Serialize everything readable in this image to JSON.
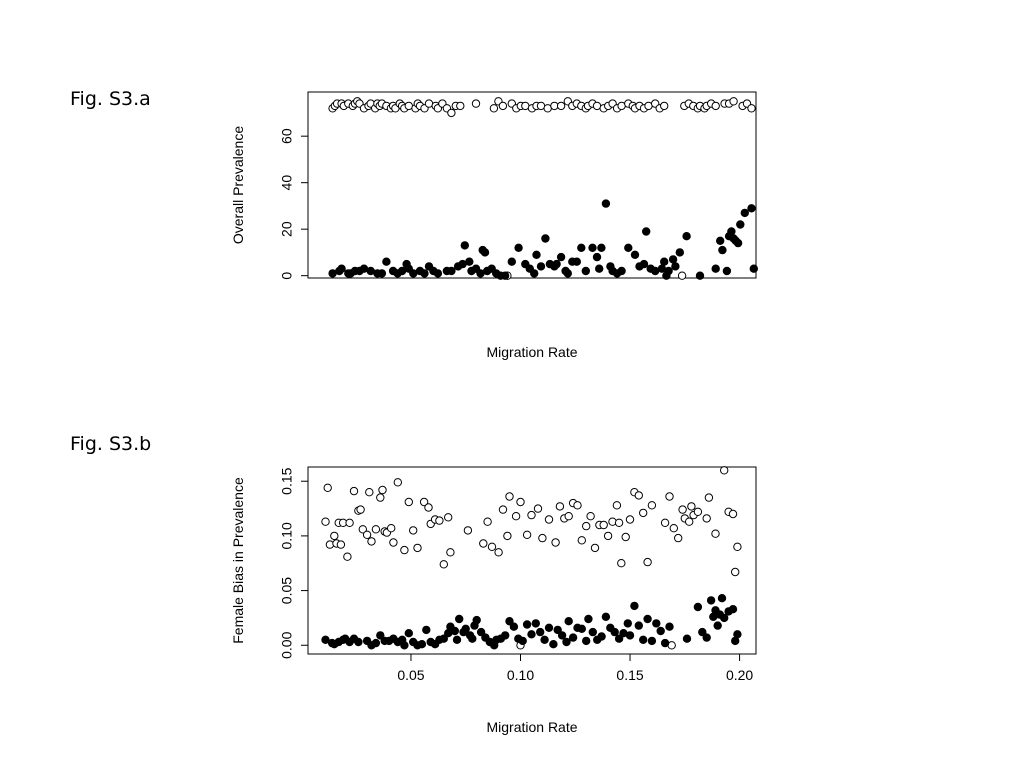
{
  "figure_labels": {
    "a": "Fig. S3.a",
    "b": "Fig. S3.b"
  },
  "chart_data": [
    {
      "type": "scatter",
      "title": "",
      "xlabel": "Migration Rate",
      "ylabel": "Overall Prevalence",
      "xlim": [
        0.0,
        0.2
      ],
      "ylim": [
        -1,
        79
      ],
      "xticks": [],
      "yticks": [
        0,
        20,
        40,
        60
      ],
      "ytick_labels": [
        "0",
        "20",
        "40",
        "60"
      ],
      "grid": false,
      "legend": "none",
      "series": [
        {
          "marker": "open-circle",
          "x": [
            0.011,
            0.012,
            0.013,
            0.015,
            0.016,
            0.018,
            0.02,
            0.021,
            0.022,
            0.023,
            0.025,
            0.027,
            0.028,
            0.03,
            0.031,
            0.032,
            0.033,
            0.035,
            0.037,
            0.038,
            0.039,
            0.041,
            0.042,
            0.043,
            0.045,
            0.048,
            0.049,
            0.05,
            0.052,
            0.054,
            0.057,
            0.058,
            0.06,
            0.062,
            0.064,
            0.066,
            0.068,
            0.075,
            0.083,
            0.085,
            0.087,
            0.091,
            0.093,
            0.095,
            0.097,
            0.1,
            0.102,
            0.104,
            0.107,
            0.11,
            0.113,
            0.116,
            0.118,
            0.12,
            0.122,
            0.124,
            0.125,
            0.127,
            0.129,
            0.132,
            0.134,
            0.136,
            0.138,
            0.14,
            0.143,
            0.145,
            0.146,
            0.148,
            0.15,
            0.152,
            0.155,
            0.157,
            0.159,
            0.168,
            0.17,
            0.172,
            0.174,
            0.175,
            0.177,
            0.178,
            0.18,
            0.182,
            0.186,
            0.188,
            0.19,
            0.194,
            0.196,
            0.198,
            0.089,
            0.167
          ],
          "y": [
            72,
            73,
            74,
            74,
            73,
            74,
            73,
            74,
            75,
            74,
            72,
            73,
            74,
            72,
            74,
            73,
            74,
            73,
            72,
            73,
            72,
            74,
            73,
            72,
            73,
            72,
            74,
            73,
            72,
            74,
            73,
            72,
            74,
            72,
            70,
            73,
            73,
            74,
            72,
            75,
            73,
            74,
            72,
            73,
            73,
            72,
            73,
            73,
            72,
            73,
            73,
            75,
            73,
            74,
            73,
            72,
            73,
            74,
            73,
            72,
            73,
            74,
            72,
            73,
            74,
            73,
            72,
            73,
            72,
            73,
            74,
            72,
            73,
            73,
            74,
            73,
            72,
            73,
            72,
            73,
            74,
            73,
            74,
            74,
            75,
            73,
            74,
            72,
            0,
            0
          ]
        },
        {
          "marker": "filled-circle",
          "x": [
            0.011,
            0.014,
            0.015,
            0.018,
            0.019,
            0.021,
            0.023,
            0.025,
            0.028,
            0.031,
            0.033,
            0.035,
            0.038,
            0.04,
            0.042,
            0.044,
            0.045,
            0.047,
            0.05,
            0.052,
            0.054,
            0.056,
            0.058,
            0.062,
            0.064,
            0.067,
            0.069,
            0.07,
            0.072,
            0.073,
            0.075,
            0.077,
            0.078,
            0.079,
            0.08,
            0.082,
            0.084,
            0.086,
            0.088,
            0.091,
            0.094,
            0.097,
            0.099,
            0.101,
            0.102,
            0.104,
            0.106,
            0.108,
            0.11,
            0.111,
            0.113,
            0.115,
            0.116,
            0.118,
            0.12,
            0.122,
            0.124,
            0.127,
            0.129,
            0.13,
            0.131,
            0.133,
            0.135,
            0.136,
            0.138,
            0.14,
            0.143,
            0.146,
            0.148,
            0.15,
            0.151,
            0.153,
            0.155,
            0.158,
            0.159,
            0.16,
            0.161,
            0.163,
            0.164,
            0.166,
            0.169,
            0.175,
            0.182,
            0.184,
            0.185,
            0.187,
            0.188,
            0.189,
            0.19,
            0.191,
            0.192,
            0.193,
            0.195,
            0.198,
            0.199
          ],
          "y": [
            1,
            2,
            3,
            1,
            1,
            2,
            2,
            3,
            2,
            1,
            1,
            6,
            2,
            1,
            2,
            5,
            3,
            1,
            2,
            1,
            4,
            2,
            1,
            2,
            2,
            4,
            5,
            13,
            6,
            2,
            3,
            1,
            11,
            10,
            2,
            3,
            1,
            0,
            0,
            6,
            12,
            5,
            3,
            1,
            9,
            4,
            16,
            5,
            4,
            5,
            8,
            2,
            1,
            6,
            6,
            12,
            2,
            12,
            8,
            3,
            12,
            31,
            4,
            2,
            1,
            2,
            12,
            9,
            4,
            5,
            19,
            3,
            2,
            3,
            6,
            0,
            2,
            7,
            4,
            10,
            17,
            0,
            3,
            15,
            11,
            2,
            17,
            19,
            16,
            15,
            14,
            22,
            27,
            29,
            3
          ],
          "_note": ""
        }
      ]
    },
    {
      "type": "scatter",
      "title": "",
      "xlabel": "Migration Rate",
      "ylabel": "Female Bias in Prevalence",
      "xlim": [
        0.003,
        0.2075
      ],
      "ylim": [
        -0.008,
        0.163
      ],
      "xticks": [
        0.05,
        0.1,
        0.15,
        0.2
      ],
      "xtick_labels": [
        "0.05",
        "0.10",
        "0.15",
        "0.20"
      ],
      "yticks": [
        0.0,
        0.05,
        0.1,
        0.15
      ],
      "ytick_labels": [
        "0.00",
        "0.05",
        "0.10",
        "0.15"
      ],
      "grid": false,
      "legend": "none",
      "series": [
        {
          "marker": "open-circle",
          "x": [
            0.011,
            0.012,
            0.013,
            0.015,
            0.016,
            0.017,
            0.018,
            0.019,
            0.021,
            0.022,
            0.024,
            0.026,
            0.027,
            0.028,
            0.03,
            0.031,
            0.032,
            0.034,
            0.036,
            0.037,
            0.038,
            0.039,
            0.041,
            0.042,
            0.044,
            0.047,
            0.049,
            0.051,
            0.053,
            0.056,
            0.058,
            0.059,
            0.061,
            0.063,
            0.065,
            0.067,
            0.068,
            0.076,
            0.083,
            0.085,
            0.087,
            0.09,
            0.092,
            0.094,
            0.095,
            0.098,
            0.1,
            0.103,
            0.105,
            0.108,
            0.11,
            0.113,
            0.116,
            0.118,
            0.12,
            0.122,
            0.124,
            0.126,
            0.128,
            0.13,
            0.132,
            0.134,
            0.136,
            0.138,
            0.14,
            0.142,
            0.144,
            0.145,
            0.146,
            0.148,
            0.15,
            0.152,
            0.154,
            0.156,
            0.158,
            0.16,
            0.166,
            0.168,
            0.17,
            0.172,
            0.174,
            0.175,
            0.177,
            0.178,
            0.179,
            0.181,
            0.185,
            0.186,
            0.189,
            0.193,
            0.195,
            0.197,
            0.198,
            0.199,
            0.1,
            0.169
          ],
          "y": [
            0.113,
            0.144,
            0.092,
            0.1,
            0.093,
            0.112,
            0.092,
            0.112,
            0.081,
            0.112,
            0.141,
            0.123,
            0.124,
            0.106,
            0.101,
            0.14,
            0.095,
            0.106,
            0.135,
            0.142,
            0.104,
            0.103,
            0.107,
            0.094,
            0.149,
            0.087,
            0.131,
            0.105,
            0.089,
            0.131,
            0.126,
            0.111,
            0.115,
            0.114,
            0.074,
            0.117,
            0.085,
            0.105,
            0.093,
            0.113,
            0.09,
            0.085,
            0.124,
            0.1,
            0.136,
            0.118,
            0.131,
            0.101,
            0.119,
            0.125,
            0.098,
            0.115,
            0.094,
            0.127,
            0.116,
            0.118,
            0.13,
            0.128,
            0.096,
            0.109,
            0.118,
            0.089,
            0.11,
            0.11,
            0.1,
            0.113,
            0.128,
            0.112,
            0.075,
            0.099,
            0.115,
            0.14,
            0.137,
            0.121,
            0.076,
            0.128,
            0.112,
            0.136,
            0.107,
            0.098,
            0.124,
            0.116,
            0.113,
            0.127,
            0.119,
            0.122,
            0.116,
            0.135,
            0.102,
            0.16,
            0.122,
            0.12,
            0.067,
            0.09,
            0.0,
            0.0
          ]
        },
        {
          "marker": "filled-circle",
          "x": [
            0.011,
            0.014,
            0.015,
            0.017,
            0.019,
            0.02,
            0.022,
            0.024,
            0.026,
            0.03,
            0.032,
            0.034,
            0.036,
            0.038,
            0.04,
            0.042,
            0.044,
            0.046,
            0.047,
            0.049,
            0.051,
            0.053,
            0.055,
            0.057,
            0.059,
            0.061,
            0.063,
            0.065,
            0.067,
            0.068,
            0.07,
            0.071,
            0.072,
            0.074,
            0.075,
            0.077,
            0.078,
            0.079,
            0.08,
            0.082,
            0.084,
            0.086,
            0.088,
            0.089,
            0.091,
            0.093,
            0.095,
            0.097,
            0.099,
            0.101,
            0.103,
            0.105,
            0.107,
            0.109,
            0.111,
            0.113,
            0.115,
            0.117,
            0.119,
            0.121,
            0.122,
            0.124,
            0.126,
            0.128,
            0.13,
            0.131,
            0.133,
            0.135,
            0.137,
            0.139,
            0.141,
            0.143,
            0.145,
            0.147,
            0.149,
            0.15,
            0.152,
            0.154,
            0.156,
            0.158,
            0.16,
            0.162,
            0.164,
            0.166,
            0.168,
            0.176,
            0.181,
            0.183,
            0.185,
            0.187,
            0.188,
            0.189,
            0.19,
            0.191,
            0.192,
            0.193,
            0.195,
            0.197,
            0.198,
            0.199
          ],
          "y": [
            0.005,
            0.002,
            0.001,
            0.003,
            0.005,
            0.006,
            0.003,
            0.006,
            0.003,
            0.004,
            0.0,
            0.002,
            0.009,
            0.004,
            0.004,
            0.006,
            0.003,
            0.005,
            0.0,
            0.011,
            0.003,
            0.0,
            0.001,
            0.014,
            0.003,
            0.001,
            0.005,
            0.006,
            0.011,
            0.017,
            0.013,
            0.005,
            0.024,
            0.012,
            0.015,
            0.009,
            0.006,
            0.018,
            0.023,
            0.012,
            0.007,
            0.003,
            0.0,
            0.005,
            0.006,
            0.009,
            0.022,
            0.017,
            0.006,
            0.004,
            0.019,
            0.01,
            0.02,
            0.012,
            0.005,
            0.016,
            0.001,
            0.014,
            0.009,
            0.003,
            0.022,
            0.007,
            0.016,
            0.015,
            0.004,
            0.024,
            0.012,
            0.005,
            0.008,
            0.026,
            0.016,
            0.012,
            0.006,
            0.011,
            0.02,
            0.009,
            0.036,
            0.018,
            0.005,
            0.024,
            0.004,
            0.02,
            0.013,
            0.002,
            0.017,
            0.006,
            0.035,
            0.012,
            0.007,
            0.041,
            0.026,
            0.032,
            0.018,
            0.028,
            0.043,
            0.025,
            0.031,
            0.033,
            0.004,
            0.01
          ]
        }
      ]
    }
  ]
}
